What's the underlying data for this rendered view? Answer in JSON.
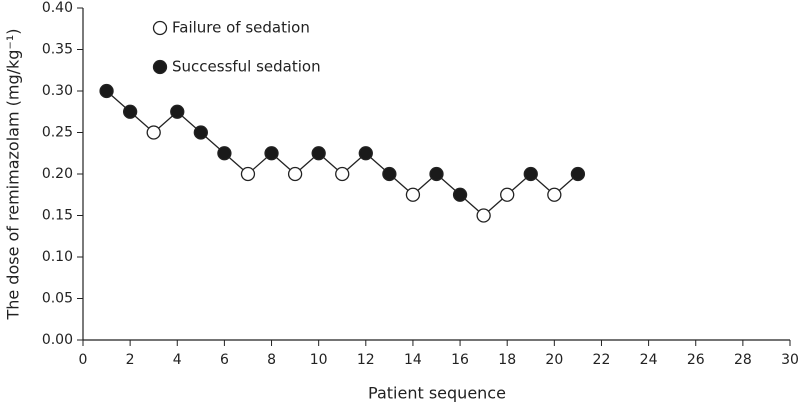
{
  "chart_data": {
    "type": "scatter",
    "connected": true,
    "x_label": "Patient sequence",
    "y_label": "The dose of remimazolam (mg/kg⁻¹)",
    "xlim": [
      0,
      30
    ],
    "xticks": [
      0,
      2,
      4,
      6,
      8,
      10,
      12,
      14,
      16,
      18,
      20,
      22,
      24,
      26,
      28,
      30
    ],
    "ylim": [
      0,
      0.4
    ],
    "yticks": [
      {
        "value": 0,
        "label": "0.00"
      },
      {
        "value": 0.05,
        "label": "0.05"
      },
      {
        "value": 0.1,
        "label": "0.10"
      },
      {
        "value": 0.15,
        "label": "0.15"
      },
      {
        "value": 0.2,
        "label": "0.20"
      },
      {
        "value": 0.25,
        "label": "0.25"
      },
      {
        "value": 0.3,
        "label": "0.30"
      },
      {
        "value": 0.35,
        "label": "0.35"
      },
      {
        "value": 0.4,
        "label": "0.40"
      }
    ],
    "legend": "upper left",
    "series": [
      {
        "name": "Failure of sedation",
        "color": "#ffffff",
        "x": [
          3,
          7,
          9,
          11,
          14,
          17,
          18,
          20
        ],
        "values": [
          0.25,
          0.2,
          0.2,
          0.2,
          0.175,
          0.15,
          0.175,
          0.175
        ]
      },
      {
        "name": "Successful sedation",
        "color": "#1a1a1a",
        "x": [
          1,
          2,
          4,
          5,
          6,
          8,
          10,
          12,
          13,
          15,
          16,
          19,
          21
        ],
        "values": [
          0.3,
          0.275,
          0.275,
          0.25,
          0.225,
          0.225,
          0.225,
          0.225,
          0.2,
          0.2,
          0.175,
          0.2,
          0.2
        ]
      }
    ]
  }
}
